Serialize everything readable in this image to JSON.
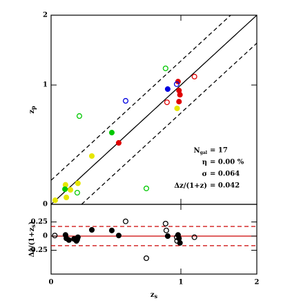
{
  "chart_data": [
    {
      "type": "scatter",
      "xscale": "log1p",
      "yscale": "log1p",
      "xlim": [
        0,
        2
      ],
      "ylim": [
        0,
        2
      ],
      "yticks": [
        0,
        1,
        2
      ],
      "ylabel": {
        "text": "z",
        "sub": "p"
      },
      "lines": [
        {
          "style": "solid",
          "color": "#000000",
          "offset": 0
        },
        {
          "style": "dashed",
          "color": "#000000",
          "offset": 0.15
        },
        {
          "style": "dashed",
          "color": "#000000",
          "offset": -0.15
        }
      ],
      "annotations": [
        {
          "name": "N",
          "sub": "gal",
          "text": "= 17"
        },
        {
          "name": "η",
          "sub": "",
          "text": "= 0.00 %"
        },
        {
          "name": "σ",
          "sub": "",
          "text": "= 0.064"
        },
        {
          "name": "Δz/(1+z)",
          "sub": "",
          "text": "= 0.042"
        }
      ],
      "series": [
        {
          "color": "#e6e600",
          "filled": true,
          "x": [
            0.022,
            0.08,
            0.085,
            0.109,
            0.154,
            0.243,
            0.96
          ],
          "values": [
            0.024,
            0.12,
            0.041,
            0.088,
            0.13,
            0.324,
            0.746
          ]
        },
        {
          "color": "#00c800",
          "filled": true,
          "x": [
            0.077,
            0.383
          ],
          "values": [
            0.092,
            0.517
          ]
        },
        {
          "color": "#00c800",
          "filled": false,
          "x": [
            0.15,
            0.163,
            0.663,
            0.843
          ],
          "values": [
            0.07,
            0.67,
            0.097,
            1.203
          ]
        },
        {
          "color": "#e00000",
          "filled": true,
          "x": [
            0.435,
            0.97,
            0.98,
            0.99,
            0.98
          ],
          "values": [
            0.429,
            1.04,
            0.937,
            0.89,
            0.816
          ]
        },
        {
          "color": "#e00000",
          "filled": false,
          "x": [
            0.857,
            1.15
          ],
          "values": [
            0.809,
            1.1
          ]
        },
        {
          "color": "#0000e0",
          "filled": true,
          "x": [
            0.864
          ],
          "values": [
            0.953
          ]
        },
        {
          "color": "#0000e0",
          "filled": false,
          "x": [
            0.489,
            0.956
          ],
          "values": [
            0.824,
            1.01
          ]
        }
      ]
    },
    {
      "type": "scatter",
      "xscale": "log1p",
      "xlim": [
        0,
        2
      ],
      "xticks": [
        0,
        1,
        2
      ],
      "ylim": [
        -0.67,
        0.56
      ],
      "yticks": [
        0.25,
        0,
        -0.25
      ],
      "xlabel": {
        "text": "z",
        "sub": "s"
      },
      "ylabel": {
        "text": "Δz/(1+z",
        "sub": "s",
        "tail": ")"
      },
      "lines": [
        {
          "style": "solid",
          "color": "#cc0000",
          "offset": 0
        },
        {
          "style": "dashed",
          "color": "#cc0000",
          "offset": 0.17
        },
        {
          "style": "dashed",
          "color": "#cc0000",
          "offset": -0.17
        }
      ],
      "series": [
        {
          "color": "#000000",
          "filled": true,
          "x": [
            0.08,
            0.085,
            0.1,
            0.13,
            0.145,
            0.154,
            0.243,
            0.383,
            0.435,
            0.864,
            0.97,
            0.98,
            0.99
          ],
          "values": [
            0.02,
            -0.04,
            -0.07,
            -0.05,
            -0.085,
            -0.02,
            0.11,
            0.1,
            0.01,
            0,
            0.02,
            -0.04,
            -0.12
          ]
        },
        {
          "color": "#000000",
          "filled": false,
          "x": [
            0.02,
            0.15,
            0.489,
            0.663,
            0.843,
            0.85,
            0.96,
            0.956,
            1.15
          ],
          "values": [
            0.01,
            -0.06,
            0.26,
            -0.39,
            0.22,
            0.1,
            -0.085,
            -0.02,
            -0.02
          ]
        }
      ]
    }
  ]
}
